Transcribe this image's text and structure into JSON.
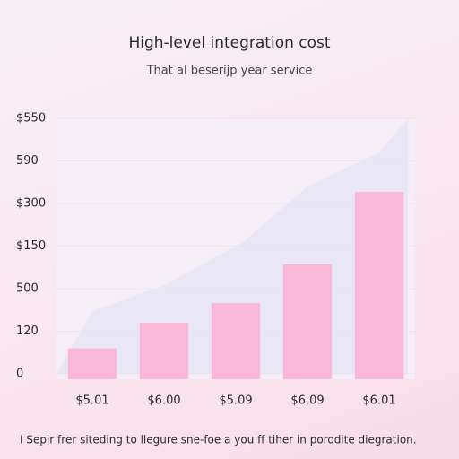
{
  "chart_data": {
    "type": "bar",
    "title": "High-level integration cost",
    "subtitle": "That al beserijp year service",
    "footnote": "I Sepir frer siteding to llegure sne-foe a you ff tiher in porodite diegration.",
    "categories": [
      "$5.01",
      "$6.00",
      "$5.09",
      "$6.09",
      "$6.01"
    ],
    "values": [
      60,
      120,
      166,
      257,
      427
    ],
    "color": "#f9b8d8",
    "area": {
      "x": [
        -0.5,
        0,
        1,
        2.1,
        3,
        4,
        4.4
      ],
      "values": [
        0,
        147,
        208,
        309,
        440,
        520,
        600
      ],
      "color": "#e6e4f4"
    },
    "ylim": [
      0,
      600
    ],
    "yticks": [
      0,
      {
        "value": 100,
        "label": "120"
      },
      {
        "value": 200,
        "label": "500"
      },
      {
        "value": 300,
        "label": "$150"
      },
      {
        "value": 400,
        "label": "$300"
      },
      {
        "value": 500,
        "label": "590"
      },
      {
        "value": 600,
        "label": "$550"
      }
    ],
    "grid": true
  }
}
